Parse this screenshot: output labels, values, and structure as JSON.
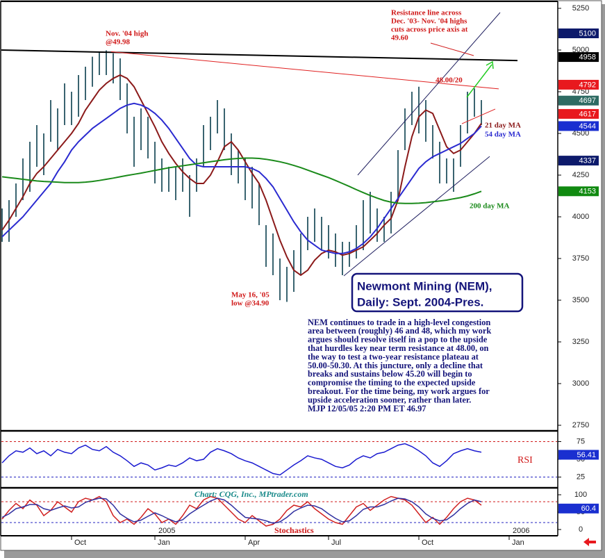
{
  "chart_data": [
    {
      "type": "hilo",
      "title": [
        "Newmont Mining (NEM),",
        "Daily: Sept. 2004-Pres."
      ],
      "commentary": [
        "NEM continues to trade in a high-level congestion",
        "area between (roughly) 46 and 48, which my work",
        "argues should resolve itself in a pop to the upside",
        "that hurdles key near term resistance at 48.00, on",
        "the way to test a two-year resistance plateau at",
        "50.00-50.30. At this juncture, only a decline that",
        "breaks and sustains below 45.20 will begin to",
        "compromise the timing to the expected upside",
        "breakout. For the time being, my work argues for",
        "upside acceleration sooner, rather than later.",
        "MJP  12/05/05  2:20 PM ET  46.97"
      ],
      "annotations": [
        {
          "lines": [
            "Nov. '04 high",
            "@49.98"
          ]
        },
        {
          "lines": [
            "Resistance line across",
            "Dec. '03- Nov. '04 highs",
            "cuts across price axis at",
            "49.60"
          ]
        },
        {
          "lines": [
            "48.00/20"
          ]
        },
        {
          "lines": [
            "May 16, '05",
            "low @34.90"
          ]
        }
      ],
      "bars": {
        "color": "#3a6470",
        "high": [
          4050,
          4100,
          4200,
          4350,
          4450,
          4550,
          4500,
          4700,
          4650,
          4800,
          4750,
          4850,
          4900,
          4960,
          4990,
          4998,
          4980,
          4950,
          4800,
          4600,
          4650,
          4600,
          4450,
          4350,
          4300,
          4300,
          4350,
          4250,
          4350,
          4550,
          4600,
          4700,
          4650,
          4500,
          4400,
          4350,
          4300,
          4200,
          3950,
          3900,
          3750,
          3700,
          3800,
          3900,
          4000,
          4050,
          4000,
          3950,
          3900,
          3850,
          3850,
          3950,
          4100,
          4150,
          4050,
          4000,
          4150,
          4400,
          4650,
          4750,
          4780,
          4700,
          4550,
          4450,
          4350,
          4350,
          4550,
          4750,
          4770,
          4700
        ],
        "low": [
          3850,
          3850,
          4000,
          4100,
          4150,
          4300,
          4250,
          4450,
          4400,
          4550,
          4550,
          4600,
          4700,
          4780,
          4850,
          4850,
          4800,
          4700,
          4500,
          4300,
          4400,
          4350,
          4200,
          4150,
          4150,
          4100,
          4150,
          4000,
          4150,
          4300,
          4400,
          4500,
          4400,
          4250,
          4200,
          4100,
          4050,
          3950,
          3700,
          3650,
          3500,
          3490,
          3550,
          3650,
          3800,
          3850,
          3800,
          3750,
          3700,
          3650,
          3700,
          3750,
          3800,
          3900,
          3850,
          3850,
          3900,
          4100,
          4400,
          4550,
          4500,
          4450,
          4350,
          4200,
          4200,
          4150,
          4300,
          4500,
          4600,
          4550
        ]
      },
      "series": [
        {
          "name": "21 day MA",
          "color": "#8b1a1a",
          "values": [
            3920,
            3980,
            4050,
            4120,
            4200,
            4260,
            4300,
            4350,
            4400,
            4450,
            4500,
            4560,
            4640,
            4700,
            4760,
            4800,
            4830,
            4850,
            4830,
            4780,
            4700,
            4620,
            4540,
            4450,
            4380,
            4320,
            4270,
            4230,
            4200,
            4200,
            4250,
            4330,
            4420,
            4450,
            4400,
            4330,
            4260,
            4200,
            4100,
            3980,
            3860,
            3760,
            3680,
            3650,
            3680,
            3740,
            3780,
            3800,
            3790,
            3770,
            3780,
            3800,
            3820,
            3860,
            3900,
            3950,
            3990,
            4100,
            4300,
            4480,
            4600,
            4640,
            4620,
            4520,
            4420,
            4380,
            4400,
            4450,
            4500,
            4560
          ]
        },
        {
          "name": "54 day MA",
          "color": "#2a2ad0",
          "values": [
            3880,
            3920,
            3960,
            4000,
            4050,
            4100,
            4150,
            4200,
            4270,
            4330,
            4400,
            4450,
            4490,
            4530,
            4560,
            4590,
            4620,
            4650,
            4670,
            4680,
            4670,
            4650,
            4620,
            4580,
            4530,
            4470,
            4410,
            4350,
            4310,
            4300,
            4300,
            4300,
            4300,
            4300,
            4300,
            4300,
            4290,
            4270,
            4230,
            4180,
            4110,
            4040,
            3970,
            3910,
            3860,
            3830,
            3800,
            3790,
            3780,
            3780,
            3790,
            3810,
            3840,
            3880,
            3930,
            3990,
            4050,
            4110,
            4170,
            4230,
            4290,
            4330,
            4360,
            4380,
            4400,
            4420,
            4440,
            4470,
            4500,
            4544
          ]
        },
        {
          "name": "200 day MA",
          "color": "#1a8a1a",
          "values": [
            4240,
            4235,
            4230,
            4225,
            4220,
            4215,
            4212,
            4210,
            4208,
            4205,
            4205,
            4205,
            4208,
            4212,
            4218,
            4225,
            4232,
            4240,
            4248,
            4255,
            4262,
            4270,
            4278,
            4286,
            4294,
            4300,
            4306,
            4312,
            4318,
            4324,
            4330,
            4336,
            4342,
            4347,
            4350,
            4352,
            4352,
            4350,
            4345,
            4338,
            4330,
            4320,
            4308,
            4295,
            4280,
            4265,
            4250,
            4235,
            4218,
            4200,
            4182,
            4163,
            4145,
            4128,
            4112,
            4098,
            4088,
            4082,
            4080,
            4080,
            4082,
            4085,
            4090,
            4095,
            4100,
            4108,
            4115,
            4125,
            4138,
            4153
          ]
        }
      ],
      "trend_lines": [
        {
          "color": "#000000",
          "x": [
            -0.3,
            74.2
          ],
          "values": [
            5000,
            4937
          ]
        },
        {
          "color": "#e02020",
          "x": [
            15.7,
            71.5
          ],
          "values": [
            4990,
            4767
          ]
        },
        {
          "color": "#202060",
          "x": [
            51.2,
            71.7
          ],
          "values": [
            4250,
            5225
          ]
        },
        {
          "color": "#202060",
          "x": [
            49.2,
            70.2
          ],
          "values": [
            3646,
            4362
          ]
        },
        {
          "color": "#e02020",
          "x": [
            66.2,
            71
          ],
          "values": [
            4558,
            4646
          ]
        }
      ],
      "markers": [
        {
          "value": 5100,
          "color": "#0d1a6b"
        },
        {
          "value": 4958,
          "color": "#000000"
        },
        {
          "value": 4792,
          "color": "#e8191e"
        },
        {
          "value": 4697,
          "color": "#2e6b63"
        },
        {
          "value": 4617,
          "color": "#e8191e"
        },
        {
          "value": 4544,
          "color": "#1a2fd0"
        },
        {
          "value": 4337,
          "color": "#0d1a6b"
        },
        {
          "value": 4153,
          "color": "#108a10"
        }
      ],
      "ylim": [
        2725,
        5287.5
      ],
      "yticks": [
        5250,
        5000,
        4750,
        4500,
        4250,
        4000,
        3750,
        3500,
        3250,
        3000,
        2750
      ]
    },
    {
      "type": "line",
      "label": "RSI",
      "series": [
        {
          "color": "#1a1ad0",
          "values": [
            45,
            55,
            62,
            60,
            66,
            58,
            62,
            55,
            64,
            60,
            58,
            66,
            70,
            64,
            62,
            68,
            60,
            55,
            48,
            40,
            45,
            42,
            35,
            38,
            42,
            40,
            45,
            52,
            48,
            50,
            60,
            65,
            62,
            58,
            52,
            48,
            45,
            40,
            35,
            30,
            28,
            35,
            42,
            48,
            55,
            52,
            50,
            45,
            40,
            38,
            42,
            50,
            55,
            52,
            58,
            60,
            65,
            70,
            72,
            68,
            62,
            55,
            45,
            40,
            48,
            58,
            62,
            65,
            62,
            60
          ]
        }
      ],
      "ref_lines": [
        {
          "value": 75,
          "color": "#d01818"
        },
        {
          "value": 25,
          "color": "#2020c0"
        }
      ],
      "markers": [
        {
          "value": 56.41,
          "color": "#1a2fd0"
        }
      ],
      "ylim": [
        11.8,
        88.2
      ],
      "yticks": [
        75,
        50,
        25
      ]
    },
    {
      "type": "line",
      "label": "Stochastics",
      "credit": "Chart: CQG, Inc., MPtrader.com",
      "categories": [
        null,
        null,
        null,
        null,
        null,
        null,
        null,
        null,
        null,
        null,
        "Oct",
        null,
        null,
        null,
        null,
        null,
        null,
        null,
        null,
        null,
        null,
        null,
        "Jan",
        null,
        null,
        null,
        null,
        null,
        null,
        null,
        null,
        null,
        null,
        null,
        null,
        "Apr",
        null,
        null,
        null,
        null,
        null,
        null,
        null,
        null,
        null,
        null,
        null,
        "Jul",
        null,
        null,
        null,
        null,
        null,
        null,
        null,
        null,
        null,
        null,
        null,
        null,
        "Oct",
        null,
        null,
        null,
        null,
        null,
        null,
        null,
        null,
        null,
        null,
        null,
        null,
        "Jan",
        null,
        null,
        null,
        null,
        null,
        null
      ],
      "years": [
        null,
        null,
        null,
        null,
        null,
        null,
        null,
        null,
        null,
        null,
        null,
        null,
        null,
        null,
        null,
        null,
        null,
        null,
        null,
        null,
        null,
        null,
        "2005",
        null,
        null,
        null,
        null,
        null,
        null,
        null,
        null,
        null,
        null,
        null,
        null,
        null,
        null,
        null,
        null,
        null,
        null,
        null,
        null,
        null,
        null,
        null,
        null,
        null,
        null,
        null,
        null,
        null,
        null,
        null,
        null,
        null,
        null,
        null,
        null,
        null,
        null,
        null,
        null,
        null,
        null,
        null,
        null,
        null,
        null,
        null,
        null,
        null,
        null,
        "2006",
        null,
        null,
        null,
        null,
        null,
        null
      ],
      "series": [
        {
          "color": "#d02020",
          "values": [
            30,
            55,
            75,
            60,
            85,
            70,
            40,
            55,
            80,
            65,
            50,
            80,
            90,
            85,
            95,
            80,
            40,
            20,
            30,
            15,
            35,
            60,
            45,
            20,
            30,
            15,
            40,
            70,
            60,
            85,
            95,
            90,
            70,
            50,
            30,
            20,
            40,
            25,
            10,
            15,
            30,
            55,
            70,
            65,
            80,
            60,
            45,
            30,
            20,
            15,
            40,
            65,
            75,
            55,
            70,
            85,
            95,
            90,
            85,
            70,
            45,
            20,
            35,
            15,
            35,
            60,
            80,
            90,
            85,
            70,
            null,
            null,
            null,
            null,
            null,
            null,
            null,
            null,
            null,
            null
          ]
        },
        {
          "color": "#3030a0",
          "values": [
            35,
            45,
            60,
            65,
            72,
            72,
            60,
            55,
            62,
            68,
            62,
            65,
            78,
            85,
            90,
            88,
            70,
            45,
            32,
            22,
            27,
            38,
            48,
            40,
            30,
            22,
            28,
            45,
            58,
            70,
            82,
            90,
            85,
            70,
            52,
            35,
            32,
            30,
            25,
            18,
            22,
            35,
            52,
            62,
            70,
            68,
            60,
            45,
            32,
            22,
            25,
            40,
            58,
            65,
            65,
            72,
            82,
            90,
            88,
            80,
            65,
            45,
            32,
            25,
            28,
            42,
            60,
            75,
            85,
            80,
            null,
            null,
            null,
            null,
            null,
            null,
            null,
            null,
            null,
            null
          ]
        }
      ],
      "ref_lines": [
        {
          "value": 80,
          "color": "#d01818"
        },
        {
          "value": 20,
          "color": "#2020c0"
        }
      ],
      "markers": [
        {
          "value": 60.4,
          "color": "#1a2fd0"
        }
      ],
      "ylim": [
        -16,
        116
      ],
      "yticks": [
        100,
        50,
        0
      ]
    }
  ]
}
